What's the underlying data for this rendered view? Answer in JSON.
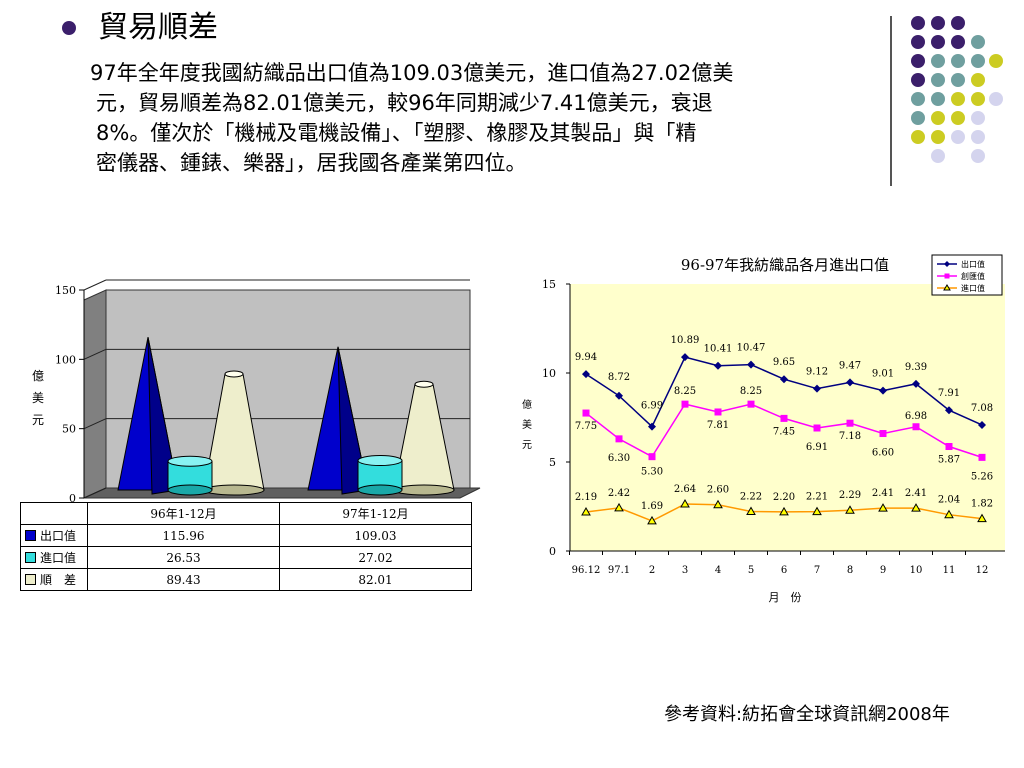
{
  "heading": "貿易順差",
  "paragraph": {
    "line1": "97年全年度我國紡織品出口值為109.03億美元，進口值為27.02億美",
    "line2": "元，貿易順差為82.01億美元，較96年同期減少7.41億美元，衰退",
    "line3": "8%。僅次於「機械及電機設備」、「塑膠、橡膠及其製品」與「精",
    "line4": "密儀器、鍾錶、樂器」，居我國各產業第四位。"
  },
  "source": "參考資料:紡拓會全球資訊網2008年",
  "colors": {
    "bullet": "#3b1f6b",
    "dot_purple": "#3b1f6b",
    "dot_teal": "#6f9f9f",
    "dot_yellow": "#cccc22",
    "dot_lavender": "#d4d4ee"
  },
  "chart_data": [
    {
      "type": "bar",
      "categories": [
        "96年1-12月",
        "97年1-12月"
      ],
      "ylabel": "億美元",
      "ylim": [
        0,
        150
      ],
      "yticks": [
        "0",
        "50",
        "100",
        "150"
      ],
      "series": [
        {
          "name": "出口值",
          "values": [
            115.96,
            109.03
          ],
          "labels": [
            "115.96",
            "109.03"
          ],
          "color": "#0000cc"
        },
        {
          "name": "進口值",
          "values": [
            26.53,
            27.02
          ],
          "labels": [
            "26.53",
            "27.02"
          ],
          "color": "#33dddd"
        },
        {
          "name": "順　差",
          "values": [
            89.43,
            82.01
          ],
          "labels": [
            "89.43",
            "82.01"
          ],
          "color": "#eeeecc"
        }
      ],
      "table_headers": [
        "96年1-12月",
        "97年1-12月"
      ]
    },
    {
      "type": "line",
      "title": "96-97年我紡織品各月進出口值",
      "xlabel": "月　份",
      "ylabel": "億美元",
      "ylim": [
        0,
        15
      ],
      "yticks": [
        "0",
        "5",
        "10",
        "15"
      ],
      "x": [
        "96.12",
        "97.1",
        "2",
        "3",
        "4",
        "5",
        "6",
        "7",
        "8",
        "9",
        "10",
        "11",
        "12"
      ],
      "legend_position": "top-right",
      "series": [
        {
          "name": "出口值",
          "color": "#000080",
          "values": [
            9.94,
            8.72,
            6.99,
            10.89,
            10.41,
            10.47,
            9.65,
            9.12,
            9.47,
            9.01,
            9.39,
            7.91,
            7.08
          ],
          "labels": [
            "9.94",
            "8.72",
            "6.99",
            "10.89",
            "10.41",
            "10.47",
            "9.65",
            "9.12",
            "9.47",
            "9.01",
            "9.39",
            "7.91",
            "7.08"
          ]
        },
        {
          "name": "創匯值",
          "color": "#ff00ff",
          "values": [
            7.75,
            6.3,
            5.3,
            8.25,
            7.81,
            8.25,
            7.45,
            6.91,
            7.18,
            6.6,
            6.98,
            5.87,
            5.26
          ],
          "labels": [
            "7.75",
            "6.30",
            "5.30",
            "8.25",
            "7.81",
            "8.25",
            "7.45",
            "6.91",
            "7.18",
            "6.60",
            "6.98",
            "5.87",
            "5.26"
          ]
        },
        {
          "name": "進口值",
          "color": "#ff9900",
          "values": [
            2.19,
            2.42,
            1.69,
            2.64,
            2.6,
            2.22,
            2.2,
            2.21,
            2.29,
            2.41,
            2.41,
            2.04,
            1.82
          ],
          "labels": [
            "2.19",
            "2.42",
            "1.69",
            "2.64",
            "2.60",
            "2.22",
            "2.20",
            "2.21",
            "2.29",
            "2.41",
            "2.41",
            "2.04",
            "1.82"
          ]
        }
      ]
    }
  ]
}
